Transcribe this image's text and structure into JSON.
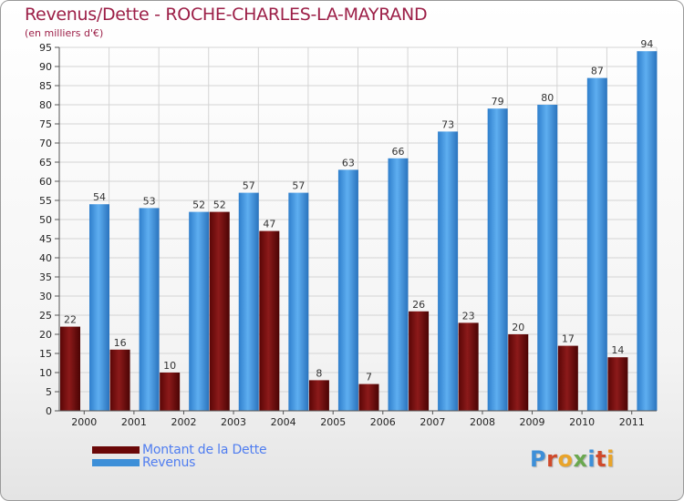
{
  "header": {
    "title": "Revenus/Dette - ROCHE-CHARLES-LA-MAYRAND",
    "subtitle": "(en milliers d'€)"
  },
  "legend": {
    "items": [
      {
        "label": "Montant de la Dette",
        "color": "#7a0c0c"
      },
      {
        "label": "Revenus",
        "color": "#3d8fd8"
      }
    ]
  },
  "logo": {
    "text": "Proxiti",
    "letter_colors": [
      "#3d8fd8",
      "#d04a2b",
      "#e9a42a",
      "#6aa84f",
      "#3d8fd8",
      "#d04a2b",
      "#e9a42a"
    ]
  },
  "colors": {
    "debt": "#7a0c0c",
    "revenue": "#3d8fd8",
    "grid": "#d4d4d4",
    "axis_text": "#222222"
  },
  "chart_data": {
    "type": "bar",
    "categories": [
      "2000",
      "2001",
      "2002",
      "2003",
      "2004",
      "2005",
      "2006",
      "2007",
      "2008",
      "2009",
      "2010",
      "2011"
    ],
    "series": [
      {
        "name": "Montant de la Dette",
        "values": [
          22,
          16,
          10,
          52,
          47,
          8,
          7,
          26,
          23,
          20,
          17,
          14
        ]
      },
      {
        "name": "Revenus",
        "values": [
          54,
          53,
          52,
          57,
          57,
          63,
          66,
          73,
          79,
          80,
          87,
          94
        ]
      }
    ],
    "ylim": [
      0,
      95
    ],
    "ytick_step": 5,
    "grid": true,
    "data_labels": true,
    "legend_position": "bottom-left"
  }
}
